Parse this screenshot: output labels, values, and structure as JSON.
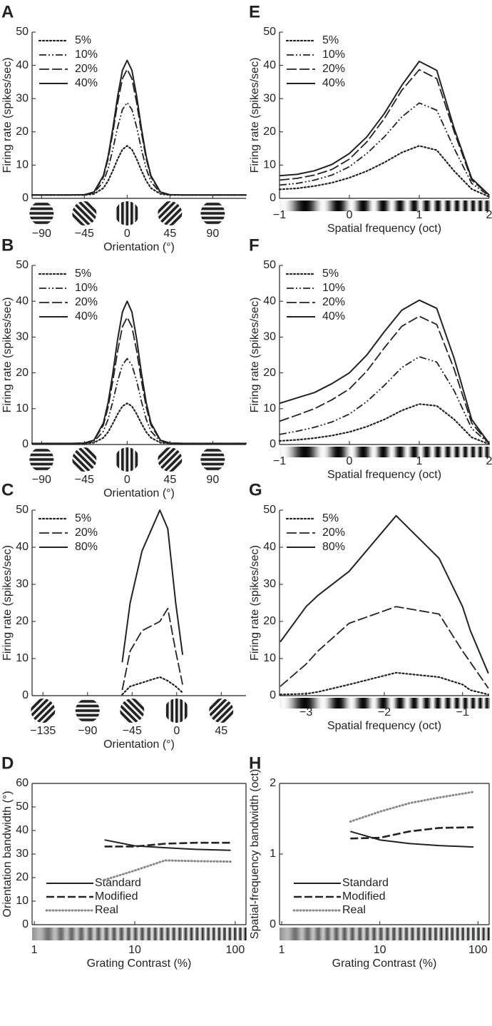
{
  "chart_data": [
    {
      "type": "line",
      "panel": "A",
      "xlabel": "Orientation (°)",
      "ylabel": "Firing rate (spikes/sec)",
      "strip": "gratings",
      "legend": "upper left",
      "xlim": [
        -100,
        125
      ],
      "ylim": [
        0,
        50
      ],
      "yticks": [
        0,
        10,
        20,
        30,
        40,
        50
      ],
      "xticks": [
        {
          "value": -90,
          "label": "−90"
        },
        {
          "value": -45,
          "label": "−45"
        },
        0,
        45,
        90
      ],
      "x": [
        -100,
        -60,
        -45,
        -35,
        -25,
        -20,
        -15,
        -10,
        -5,
        0,
        5,
        10,
        15,
        20,
        25,
        35,
        45,
        60,
        125
      ],
      "series": [
        {
          "name": "5%",
          "color": "#222222",
          "style": "dotted",
          "values": [
            1,
            1,
            1,
            1.3,
            3.1,
            5.3,
            8.4,
            11.8,
            14.7,
            15.8,
            14.7,
            11.8,
            8.4,
            5.3,
            3.1,
            1.3,
            1,
            1,
            1
          ]
        },
        {
          "name": "10%",
          "color": "#222222",
          "style": "dashdotdot",
          "values": [
            1,
            1,
            1,
            1.6,
            5,
            9,
            14.8,
            21.4,
            26.7,
            28.8,
            26.7,
            21.4,
            14.8,
            9,
            5,
            1.6,
            1,
            1,
            1
          ]
        },
        {
          "name": "20%",
          "color": "#222222",
          "style": "dashed",
          "values": [
            1,
            1,
            1.1,
            1.8,
            6.4,
            11.9,
            19.8,
            28.7,
            36,
            38.8,
            36,
            28.7,
            19.8,
            11.9,
            6.4,
            1.8,
            1.1,
            1,
            1
          ]
        },
        {
          "name": "40%",
          "color": "#222222",
          "style": "solid",
          "values": [
            1,
            1,
            1.1,
            1.9,
            6.8,
            12.7,
            21.1,
            30.7,
            38.5,
            41.5,
            38.5,
            30.7,
            21.1,
            12.7,
            6.8,
            1.9,
            1.1,
            1,
            1
          ]
        }
      ]
    },
    {
      "type": "line",
      "panel": "B",
      "xlabel": "Orientation (°)",
      "ylabel": "Firing rate (spikes/sec)",
      "strip": "gratings",
      "legend": "upper left",
      "xlim": [
        -100,
        125
      ],
      "ylim": [
        0,
        50
      ],
      "yticks": [
        0,
        10,
        20,
        30,
        40,
        50
      ],
      "xticks": [
        {
          "value": -90,
          "label": "−90"
        },
        {
          "value": -45,
          "label": "−45"
        },
        0,
        45,
        90
      ],
      "x": [
        -100,
        -60,
        -45,
        -35,
        -25,
        -20,
        -15,
        -10,
        -5,
        0,
        5,
        10,
        15,
        20,
        25,
        35,
        45,
        60,
        125
      ],
      "series": [
        {
          "name": "5%",
          "color": "#222222",
          "style": "dotted",
          "values": [
            0.3,
            0.3,
            0.3,
            0.5,
            1.9,
            3.5,
            5.9,
            8.5,
            10.7,
            11.5,
            10.7,
            8.5,
            5.9,
            3.5,
            1.9,
            0.5,
            0.3,
            0.3,
            0.3
          ]
        },
        {
          "name": "10%",
          "color": "#222222",
          "style": "dashdotdot",
          "values": [
            0.3,
            0.3,
            0.3,
            0.8,
            3.7,
            7.1,
            12.1,
            17.7,
            22.2,
            24,
            22.2,
            17.7,
            12.1,
            7.1,
            3.7,
            0.8,
            0.3,
            0.3,
            0.3
          ]
        },
        {
          "name": "20%",
          "color": "#222222",
          "style": "dashed",
          "values": [
            0.3,
            0.3,
            0.4,
            1.1,
            5.4,
            10.5,
            17.8,
            26.1,
            32.9,
            35.5,
            32.9,
            26.1,
            17.8,
            10.5,
            5.4,
            1.1,
            0.4,
            0.3,
            0.3
          ]
        },
        {
          "name": "40%",
          "color": "#222222",
          "style": "solid",
          "values": [
            0.3,
            0.3,
            0.4,
            1.2,
            6,
            11.8,
            20,
            29.4,
            37,
            40,
            37,
            29.4,
            20,
            11.8,
            6,
            1.2,
            0.4,
            0.3,
            0.3
          ]
        }
      ]
    },
    {
      "type": "line",
      "panel": "C",
      "xlabel": "Orientation (°)",
      "ylabel": "Firing rate (spikes/sec)",
      "strip": "gratings",
      "legend": "upper left",
      "xlim": [
        -146,
        70
      ],
      "ylim": [
        0,
        50
      ],
      "yticks": [
        0,
        10,
        20,
        30,
        40,
        50
      ],
      "xticks": [
        {
          "value": -135,
          "label": "−135"
        },
        {
          "value": -90,
          "label": "−90"
        },
        {
          "value": -45,
          "label": "−45"
        },
        0,
        45
      ],
      "x": [
        -55,
        -47,
        -35,
        -17,
        -9,
        -1,
        6
      ],
      "series": [
        {
          "name": "5%",
          "color": "#222222",
          "style": "dotted",
          "values": [
            0.3,
            2.5,
            3.5,
            5,
            4,
            2.5,
            0.8
          ]
        },
        {
          "name": "20%",
          "color": "#222222",
          "style": "dashed",
          "values": [
            1.5,
            12,
            17.5,
            20,
            23.5,
            12,
            3
          ]
        },
        {
          "name": "80%",
          "color": "#222222",
          "style": "solid",
          "values": [
            9,
            25,
            39,
            50,
            45,
            25,
            11
          ]
        }
      ]
    },
    {
      "type": "line",
      "panel": "D",
      "xlabel": "Grating Contrast (%)",
      "ylabel": "Orientation bandwidth (°)",
      "strip": "contrast",
      "legend": "lower left",
      "xscale": "log",
      "frame": true,
      "xlim": [
        0.95,
        128
      ],
      "ylim": [
        0,
        60
      ],
      "yticks": [
        0,
        10,
        20,
        30,
        40,
        50,
        60
      ],
      "xticks": [
        1,
        10,
        100
      ],
      "x": [
        5,
        10,
        20,
        40,
        90
      ],
      "series": [
        {
          "name": "Standard",
          "color": "#222222",
          "style": "solid",
          "values": [
            36,
            33.5,
            32.7,
            32,
            31.6
          ]
        },
        {
          "name": "Modified",
          "color": "#222222",
          "style": "bigdash",
          "values": [
            33.2,
            33.2,
            34.4,
            34.8,
            34.8
          ]
        },
        {
          "name": "Real",
          "color": "#888888",
          "style": "bigdot",
          "values": [
            19,
            23,
            27.3,
            27,
            26.8
          ]
        }
      ]
    },
    {
      "type": "line",
      "panel": "E",
      "xlabel": "Spatial frequency (oct)",
      "ylabel": "Firing rate (spikes/sec)",
      "strip": "frequency",
      "legend": "upper left",
      "xlim": [
        -1,
        2
      ],
      "ylim": [
        0,
        50
      ],
      "yticks": [
        0,
        10,
        20,
        30,
        40,
        50
      ],
      "xticks": [
        {
          "value": -1,
          "label": "−1"
        },
        0,
        1,
        2
      ],
      "x": [
        -1,
        -0.75,
        -0.5,
        -0.25,
        0,
        0.25,
        0.5,
        0.75,
        1,
        1.25,
        1.5,
        1.75,
        2
      ],
      "series": [
        {
          "name": "5%",
          "color": "#222222",
          "style": "dotted",
          "values": [
            2.7,
            3,
            3.7,
            4.7,
            6.2,
            8.2,
            10.8,
            13.8,
            15.8,
            14.5,
            8.2,
            2.8,
            0.5
          ]
        },
        {
          "name": "10%",
          "color": "#222222",
          "style": "dashdotdot",
          "values": [
            4,
            4.5,
            5.5,
            7,
            9.5,
            13.5,
            18.5,
            24.5,
            28.7,
            26.5,
            15,
            4.5,
            0.8
          ]
        },
        {
          "name": "20%",
          "color": "#222222",
          "style": "dashed",
          "values": [
            5.5,
            6,
            7,
            8.7,
            11.8,
            17,
            24,
            32.5,
            38.7,
            36,
            20,
            5.5,
            1
          ]
        },
        {
          "name": "40%",
          "color": "#222222",
          "style": "solid",
          "values": [
            6.8,
            7.2,
            8.3,
            10.2,
            13.5,
            18.5,
            25.5,
            34,
            41.2,
            38.5,
            21,
            6,
            1
          ]
        }
      ]
    },
    {
      "type": "line",
      "panel": "F",
      "xlabel": "Spatial frequency (oct)",
      "ylabel": "Firing rate (spikes/sec)",
      "strip": "frequency",
      "legend": "upper left",
      "xlim": [
        -1,
        2
      ],
      "ylim": [
        0,
        50
      ],
      "yticks": [
        0,
        10,
        20,
        30,
        40,
        50
      ],
      "xticks": [
        {
          "value": -1,
          "label": "−1"
        },
        0,
        1,
        2
      ],
      "x": [
        -1,
        -0.75,
        -0.5,
        -0.25,
        0,
        0.25,
        0.5,
        0.75,
        1,
        1.25,
        1.5,
        1.75,
        2
      ],
      "series": [
        {
          "name": "5%",
          "color": "#222222",
          "style": "dotted",
          "values": [
            1,
            1.3,
            1.8,
            2.5,
            3.5,
            5,
            7,
            9.5,
            11.3,
            10.8,
            7,
            2,
            0.1
          ]
        },
        {
          "name": "10%",
          "color": "#222222",
          "style": "dashdotdot",
          "values": [
            2.8,
            3.7,
            4.8,
            6.3,
            8.5,
            12,
            16.5,
            21.5,
            24.5,
            23,
            15,
            4.5,
            0.2
          ]
        },
        {
          "name": "20%",
          "color": "#222222",
          "style": "dashed",
          "values": [
            6.5,
            8.2,
            10,
            12.5,
            15.5,
            20.5,
            27,
            33,
            35.8,
            33.5,
            21,
            6,
            0.2
          ]
        },
        {
          "name": "40%",
          "color": "#222222",
          "style": "solid",
          "values": [
            11.5,
            13,
            14.5,
            17,
            20,
            25,
            31.5,
            37.5,
            40.3,
            38,
            24,
            7,
            0.3
          ]
        }
      ]
    },
    {
      "type": "line",
      "panel": "G",
      "xlabel": "Spatial frequency (oct)",
      "ylabel": "Firing rate (spikes/sec)",
      "strip": "frequency",
      "legend": "upper left",
      "xlim": [
        -3.34,
        -0.66
      ],
      "ylim": [
        0,
        50
      ],
      "yticks": [
        0,
        10,
        20,
        30,
        40,
        50
      ],
      "xticks": [
        {
          "value": -3,
          "label": "−3"
        },
        {
          "value": -2,
          "label": "−2"
        },
        {
          "value": -1,
          "label": "−1"
        }
      ],
      "x": [
        -3.33,
        -3,
        -2.85,
        -2.45,
        -1.85,
        -1.3,
        -1,
        -0.9,
        -0.67
      ],
      "series": [
        {
          "name": "5%",
          "color": "#222222",
          "style": "dotted",
          "values": [
            0.3,
            0.5,
            1,
            3,
            6.2,
            5,
            3,
            1.5,
            0.3
          ]
        },
        {
          "name": "20%",
          "color": "#222222",
          "style": "dashed",
          "values": [
            2.5,
            8.5,
            12,
            19.5,
            24,
            22,
            12,
            9,
            2
          ]
        },
        {
          "name": "80%",
          "color": "#222222",
          "style": "solid",
          "values": [
            14.5,
            24,
            27,
            33.5,
            48.5,
            37,
            24,
            17.5,
            6
          ]
        }
      ]
    },
    {
      "type": "line",
      "panel": "H",
      "xlabel": "Grating Contrast (%)",
      "ylabel": "Spatial-frequency bandwidth (oct)",
      "strip": "contrast",
      "legend": "lower left",
      "xscale": "log",
      "frame": true,
      "xlim": [
        0.95,
        130
      ],
      "ylim": [
        0,
        2
      ],
      "yticks": [
        0,
        1,
        2
      ],
      "xticks": [
        1,
        10,
        100
      ],
      "x": [
        5,
        10,
        20,
        40,
        90
      ],
      "series": [
        {
          "name": "Standard",
          "color": "#222222",
          "style": "solid",
          "values": [
            1.32,
            1.2,
            1.15,
            1.12,
            1.1
          ]
        },
        {
          "name": "Modified",
          "color": "#222222",
          "style": "bigdash",
          "values": [
            1.22,
            1.23,
            1.32,
            1.37,
            1.38
          ]
        },
        {
          "name": "Real",
          "color": "#888888",
          "style": "bigdot",
          "values": [
            1.46,
            1.6,
            1.72,
            1.8,
            1.88
          ]
        }
      ]
    }
  ]
}
